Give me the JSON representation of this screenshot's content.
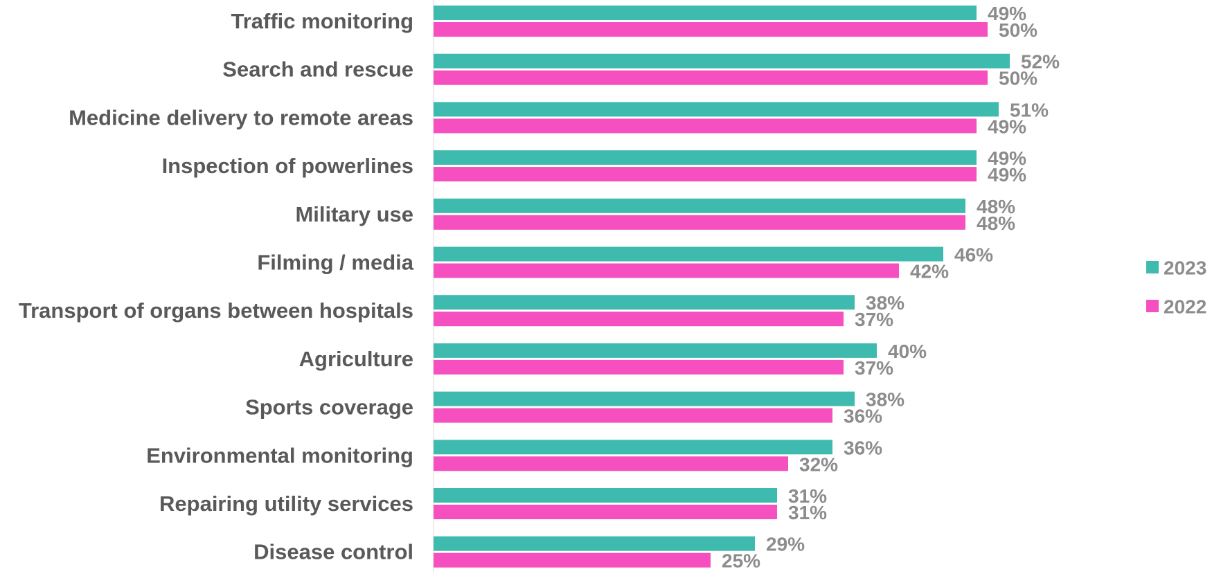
{
  "chart_data": {
    "type": "bar",
    "orientation": "horizontal",
    "categories": [
      "Traffic monitoring",
      "Search and rescue",
      "Medicine delivery to remote areas",
      "Inspection of powerlines",
      "Military use",
      "Filming / media",
      "Transport of organs between hospitals",
      "Agriculture",
      "Sports coverage",
      "Environmental monitoring",
      "Repairing utility services",
      "Disease control"
    ],
    "series": [
      {
        "name": "2023",
        "color": "#3fbaae",
        "values": [
          49,
          52,
          51,
          49,
          48,
          46,
          38,
          40,
          38,
          36,
          31,
          29
        ],
        "labels": [
          "49%",
          "52%",
          "51%",
          "49%",
          "48%",
          "46%",
          "38%",
          "40%",
          "38%",
          "36%",
          "31%",
          "29%"
        ]
      },
      {
        "name": "2022",
        "color": "#f64fbf",
        "values": [
          50,
          50,
          49,
          49,
          48,
          42,
          37,
          37,
          36,
          32,
          31,
          25
        ],
        "labels": [
          "50%",
          "50%",
          "49%",
          "49%",
          "48%",
          "42%",
          "37%",
          "37%",
          "36%",
          "32%",
          "31%",
          "25%"
        ]
      }
    ],
    "xlim": [
      0,
      100
    ],
    "grid": false,
    "legend_position": "right",
    "title": "",
    "xlabel": "",
    "ylabel": ""
  }
}
